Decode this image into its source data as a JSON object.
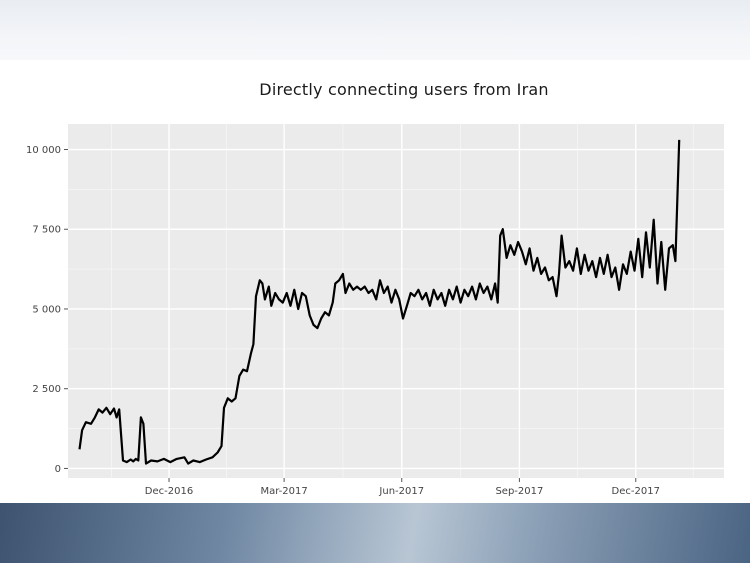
{
  "chart_data": {
    "type": "line",
    "title": "Directly connecting users from Iran",
    "xlabel": "",
    "ylabel": "",
    "ylim": [
      -300,
      10800
    ],
    "xlim": [
      "2016-09-13",
      "2018-02-08"
    ],
    "y_ticks": [
      0,
      2500,
      5000,
      7500,
      10000
    ],
    "y_tick_labels": [
      "0",
      "2 500",
      "5 000",
      "7 500",
      "10 000"
    ],
    "x_ticks": [
      "2016-12-01",
      "2017-03-01",
      "2017-06-01",
      "2017-09-01",
      "2017-12-01"
    ],
    "x_tick_labels": [
      "Dec-2016",
      "Mar-2017",
      "Jun-2017",
      "Sep-2017",
      "Dec-2017"
    ],
    "grid": true,
    "series": [
      {
        "color": "#000000",
        "points": [
          [
            "2016-09-22",
            600
          ],
          [
            "2016-09-24",
            1200
          ],
          [
            "2016-09-27",
            1450
          ],
          [
            "2016-10-01",
            1400
          ],
          [
            "2016-10-04",
            1600
          ],
          [
            "2016-10-07",
            1850
          ],
          [
            "2016-10-10",
            1750
          ],
          [
            "2016-10-13",
            1900
          ],
          [
            "2016-10-16",
            1700
          ],
          [
            "2016-10-19",
            1880
          ],
          [
            "2016-10-21",
            1600
          ],
          [
            "2016-10-23",
            1850
          ],
          [
            "2016-10-26",
            250
          ],
          [
            "2016-10-29",
            200
          ],
          [
            "2016-11-01",
            280
          ],
          [
            "2016-11-03",
            220
          ],
          [
            "2016-11-05",
            300
          ],
          [
            "2016-11-07",
            250
          ],
          [
            "2016-11-09",
            1600
          ],
          [
            "2016-11-11",
            1400
          ],
          [
            "2016-11-13",
            150
          ],
          [
            "2016-11-17",
            250
          ],
          [
            "2016-11-22",
            220
          ],
          [
            "2016-11-27",
            300
          ],
          [
            "2016-12-02",
            200
          ],
          [
            "2016-12-07",
            300
          ],
          [
            "2016-12-13",
            350
          ],
          [
            "2016-12-16",
            150
          ],
          [
            "2016-12-20",
            250
          ],
          [
            "2016-12-25",
            200
          ],
          [
            "2016-12-30",
            280
          ],
          [
            "2017-01-04",
            350
          ],
          [
            "2017-01-08",
            500
          ],
          [
            "2017-01-11",
            700
          ],
          [
            "2017-01-13",
            1900
          ],
          [
            "2017-01-16",
            2200
          ],
          [
            "2017-01-19",
            2100
          ],
          [
            "2017-01-22",
            2200
          ],
          [
            "2017-01-25",
            2900
          ],
          [
            "2017-01-28",
            3100
          ],
          [
            "2017-01-31",
            3050
          ],
          [
            "2017-02-03",
            3600
          ],
          [
            "2017-02-05",
            3900
          ],
          [
            "2017-02-07",
            5400
          ],
          [
            "2017-02-10",
            5900
          ],
          [
            "2017-02-12",
            5800
          ],
          [
            "2017-02-14",
            5300
          ],
          [
            "2017-02-17",
            5700
          ],
          [
            "2017-02-19",
            5100
          ],
          [
            "2017-02-22",
            5500
          ],
          [
            "2017-02-25",
            5300
          ],
          [
            "2017-02-28",
            5200
          ],
          [
            "2017-03-03",
            5500
          ],
          [
            "2017-03-06",
            5100
          ],
          [
            "2017-03-09",
            5600
          ],
          [
            "2017-03-12",
            5000
          ],
          [
            "2017-03-15",
            5500
          ],
          [
            "2017-03-18",
            5400
          ],
          [
            "2017-03-21",
            4800
          ],
          [
            "2017-03-24",
            4500
          ],
          [
            "2017-03-27",
            4400
          ],
          [
            "2017-03-30",
            4700
          ],
          [
            "2017-04-02",
            4900
          ],
          [
            "2017-04-05",
            4800
          ],
          [
            "2017-04-08",
            5200
          ],
          [
            "2017-04-10",
            5800
          ],
          [
            "2017-04-13",
            5900
          ],
          [
            "2017-04-16",
            6100
          ],
          [
            "2017-04-18",
            5500
          ],
          [
            "2017-04-21",
            5800
          ],
          [
            "2017-04-24",
            5600
          ],
          [
            "2017-04-27",
            5700
          ],
          [
            "2017-04-30",
            5600
          ],
          [
            "2017-05-03",
            5700
          ],
          [
            "2017-05-06",
            5500
          ],
          [
            "2017-05-09",
            5600
          ],
          [
            "2017-05-12",
            5300
          ],
          [
            "2017-05-15",
            5900
          ],
          [
            "2017-05-18",
            5500
          ],
          [
            "2017-05-21",
            5700
          ],
          [
            "2017-05-24",
            5200
          ],
          [
            "2017-05-27",
            5600
          ],
          [
            "2017-05-30",
            5300
          ],
          [
            "2017-06-02",
            4700
          ],
          [
            "2017-06-05",
            5100
          ],
          [
            "2017-06-08",
            5500
          ],
          [
            "2017-06-11",
            5400
          ],
          [
            "2017-06-14",
            5600
          ],
          [
            "2017-06-17",
            5300
          ],
          [
            "2017-06-20",
            5500
          ],
          [
            "2017-06-23",
            5100
          ],
          [
            "2017-06-26",
            5600
          ],
          [
            "2017-06-29",
            5300
          ],
          [
            "2017-07-02",
            5500
          ],
          [
            "2017-07-05",
            5100
          ],
          [
            "2017-07-08",
            5600
          ],
          [
            "2017-07-11",
            5300
          ],
          [
            "2017-07-14",
            5700
          ],
          [
            "2017-07-17",
            5200
          ],
          [
            "2017-07-20",
            5600
          ],
          [
            "2017-07-23",
            5400
          ],
          [
            "2017-07-26",
            5700
          ],
          [
            "2017-07-29",
            5300
          ],
          [
            "2017-08-01",
            5800
          ],
          [
            "2017-08-04",
            5500
          ],
          [
            "2017-08-07",
            5700
          ],
          [
            "2017-08-10",
            5300
          ],
          [
            "2017-08-13",
            5800
          ],
          [
            "2017-08-15",
            5200
          ],
          [
            "2017-08-17",
            7300
          ],
          [
            "2017-08-19",
            7500
          ],
          [
            "2017-08-22",
            6600
          ],
          [
            "2017-08-25",
            7000
          ],
          [
            "2017-08-28",
            6700
          ],
          [
            "2017-08-31",
            7100
          ],
          [
            "2017-09-03",
            6800
          ],
          [
            "2017-09-06",
            6400
          ],
          [
            "2017-09-09",
            6900
          ],
          [
            "2017-09-12",
            6200
          ],
          [
            "2017-09-15",
            6600
          ],
          [
            "2017-09-18",
            6100
          ],
          [
            "2017-09-21",
            6300
          ],
          [
            "2017-09-24",
            5900
          ],
          [
            "2017-09-27",
            6000
          ],
          [
            "2017-09-30",
            5400
          ],
          [
            "2017-10-02",
            6100
          ],
          [
            "2017-10-04",
            7300
          ],
          [
            "2017-10-07",
            6300
          ],
          [
            "2017-10-10",
            6500
          ],
          [
            "2017-10-13",
            6200
          ],
          [
            "2017-10-16",
            6900
          ],
          [
            "2017-10-19",
            6100
          ],
          [
            "2017-10-22",
            6700
          ],
          [
            "2017-10-25",
            6200
          ],
          [
            "2017-10-28",
            6500
          ],
          [
            "2017-10-31",
            6000
          ],
          [
            "2017-11-03",
            6600
          ],
          [
            "2017-11-06",
            6100
          ],
          [
            "2017-11-09",
            6700
          ],
          [
            "2017-11-12",
            6000
          ],
          [
            "2017-11-15",
            6300
          ],
          [
            "2017-11-18",
            5600
          ],
          [
            "2017-11-21",
            6400
          ],
          [
            "2017-11-24",
            6100
          ],
          [
            "2017-11-27",
            6800
          ],
          [
            "2017-11-30",
            6200
          ],
          [
            "2017-12-03",
            7200
          ],
          [
            "2017-12-06",
            6000
          ],
          [
            "2017-12-09",
            7400
          ],
          [
            "2017-12-12",
            6300
          ],
          [
            "2017-12-15",
            7800
          ],
          [
            "2017-12-18",
            5800
          ],
          [
            "2017-12-21",
            7100
          ],
          [
            "2017-12-24",
            5600
          ],
          [
            "2017-12-27",
            6900
          ],
          [
            "2017-12-30",
            7000
          ],
          [
            "2018-01-01",
            6500
          ],
          [
            "2018-01-04",
            10300
          ]
        ]
      }
    ]
  }
}
